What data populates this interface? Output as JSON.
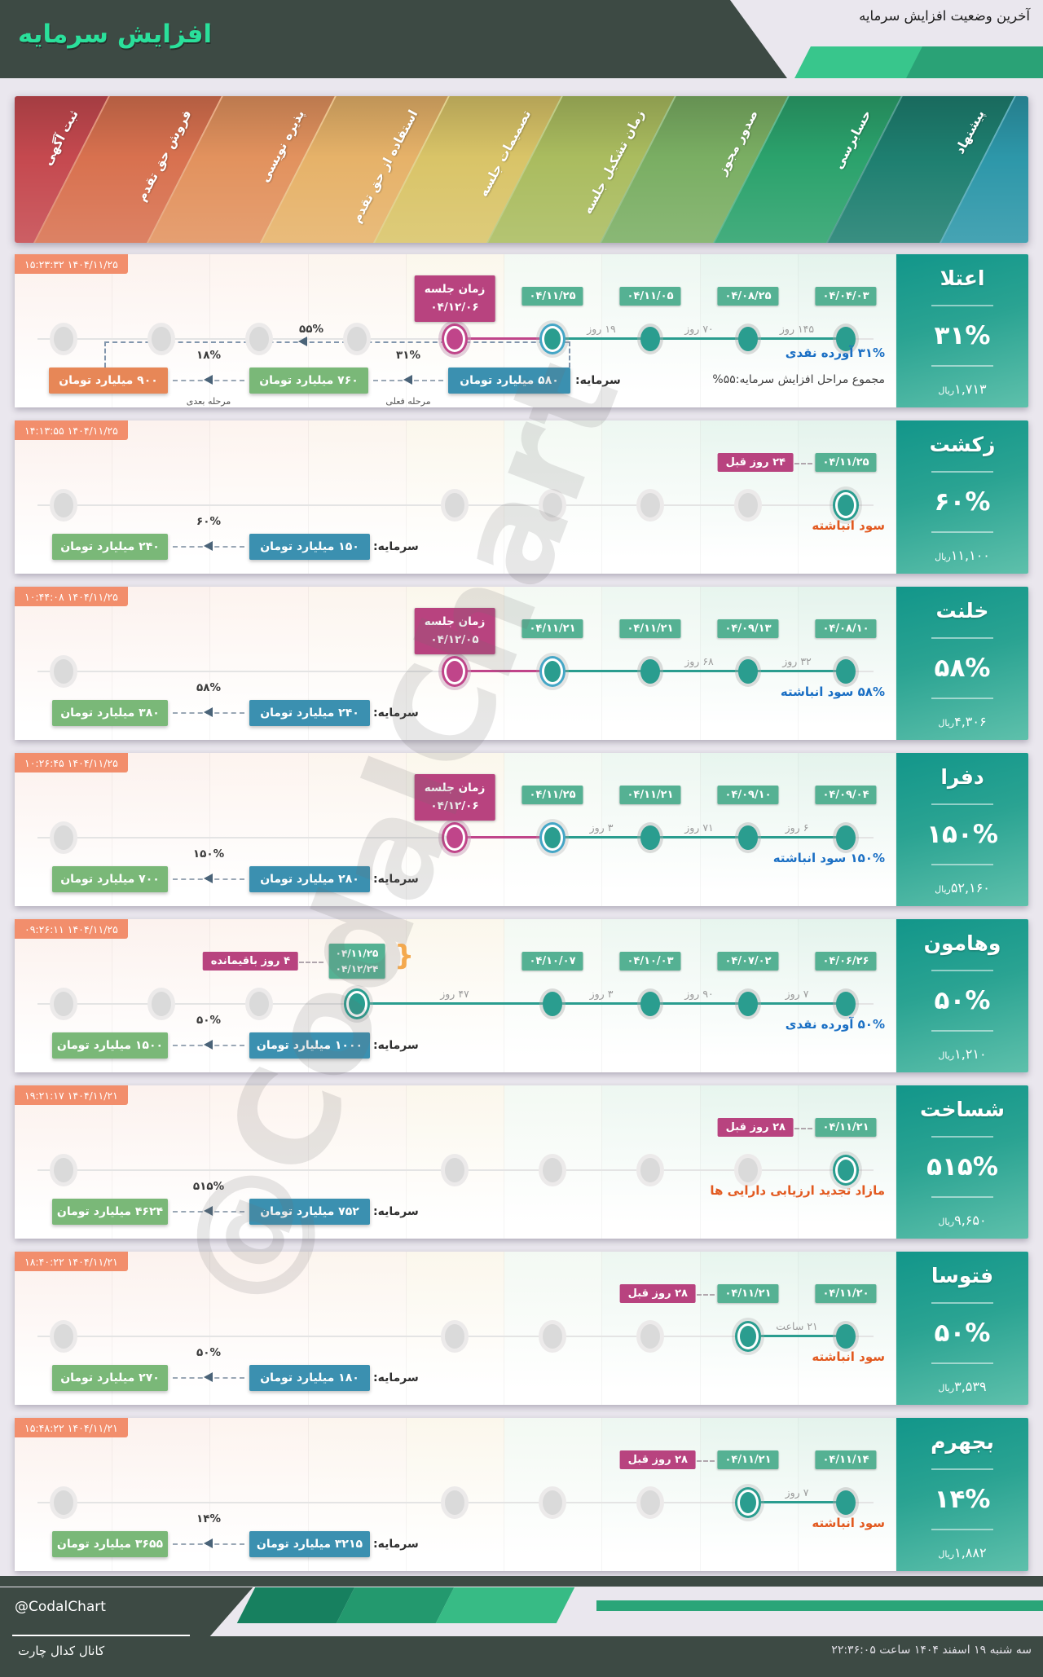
{
  "header": {
    "title": "افزایش سرمایه",
    "subtitle": "آخرین وضعیت افزایش سرمایه"
  },
  "stages": [
    {
      "label": "ثبت آگهی",
      "color": "#c5494f"
    },
    {
      "label": "فروش حق تقدم",
      "color": "#d8714f"
    },
    {
      "label": "پذیره نویسی",
      "color": "#e2925e"
    },
    {
      "label": "استفاده از حق تقدم",
      "color": "#e6b269"
    },
    {
      "label": "تصمیمات جلسه",
      "color": "#d9c468"
    },
    {
      "label": "زمان تشکیل جلسه",
      "color": "#aabc5f"
    },
    {
      "label": "صدور مجوز",
      "color": "#7aae63"
    },
    {
      "label": "حسابرسی",
      "color": "#2ba26c"
    },
    {
      "label": "پیشنهاد",
      "color": "#1e7f70"
    },
    {
      "label": "",
      "color": "#2d97a9"
    }
  ],
  "colors": {
    "teal": "#2a9d8f",
    "magenta": "#c0458a",
    "badge_teal": "#55b193",
    "badge_magenta": "#b8437f",
    "timestamp": "#f28e6c",
    "amount_blue": "#3b90b0",
    "amount_green": "#7ab878",
    "amount_orange": "#e78757",
    "cat_blue": "#1a6fc4",
    "cat_orange": "#e2591f"
  },
  "watermark": "@CodalChart",
  "cards": [
    {
      "name": "اعتلا",
      "pct": "۳۱%",
      "price": "۱,۷۱۳",
      "unit": "ریال",
      "timestamp": "۱۴۰۴/۱۱/۲۵ ۱۵:۲۳:۳۲",
      "meeting": {
        "col": 5,
        "title": "زمان جلسه",
        "date": "۰۴/۱۲/۰۶"
      },
      "dates": [
        {
          "col": 6,
          "text": "۰۴/۱۱/۲۵"
        },
        {
          "col": 7,
          "text": "۰۴/۱۱/۰۵"
        },
        {
          "col": 8,
          "text": "۰۴/۰۸/۲۵"
        },
        {
          "col": 9,
          "text": "۰۴/۰۴/۰۳"
        }
      ],
      "circles": [
        {
          "col": 1,
          "type": "gray"
        },
        {
          "col": 2,
          "type": "gray"
        },
        {
          "col": 3,
          "type": "gray"
        },
        {
          "col": 4,
          "type": "gray"
        },
        {
          "col": 5,
          "type": "magenta-ring"
        },
        {
          "col": 6,
          "type": "blue-ring"
        },
        {
          "col": 7,
          "type": "teal"
        },
        {
          "col": 8,
          "type": "teal"
        },
        {
          "col": 9,
          "type": "teal"
        }
      ],
      "segments": [
        {
          "from": 5,
          "to": 6,
          "color": "magenta"
        },
        {
          "from": 6,
          "to": 9,
          "color": "teal"
        }
      ],
      "gaps": [
        {
          "between": [
            6,
            7
          ],
          "text": "۱۹ روز"
        },
        {
          "between": [
            7,
            8
          ],
          "text": "۷۰ روز"
        },
        {
          "between": [
            8,
            9
          ],
          "text": "۱۴۵ روز"
        }
      ],
      "category": {
        "text": "۳۱% آورده نقدی",
        "color": "blue"
      },
      "note": "مجموع مراحل افزایش سرمایه:۵۵%",
      "amounts": {
        "label": "سرمایه:",
        "items": [
          {
            "text": "۵۸۰ میلیارد تومان",
            "color": "blue"
          },
          {
            "text": "۷۶۰ میلیارد تومان",
            "color": "green"
          },
          {
            "text": "۹۰۰ میلیارد تومان",
            "color": "orange"
          }
        ],
        "arrows": [
          {
            "pct": "۳۱%",
            "note": "مرحله فعلی"
          },
          {
            "pct": "۱۸%",
            "note": "مرحله بعدی"
          }
        ],
        "arc_pct": "۵۵%"
      }
    },
    {
      "name": "زکشت",
      "pct": "۶۰%",
      "price": "۱۱,۱۰۰",
      "unit": "ریال",
      "timestamp": "۱۴۰۴/۱۱/۲۵ ۱۴:۱۳:۵۵",
      "meeting": null,
      "ago": {
        "col": 9,
        "text": "۲۴ روز قبل"
      },
      "dates": [
        {
          "col": 9,
          "text": "۰۴/۱۱/۲۵"
        }
      ],
      "circles": [
        {
          "col": 1,
          "type": "gray"
        },
        {
          "col": 5,
          "type": "gray"
        },
        {
          "col": 6,
          "type": "gray"
        },
        {
          "col": 7,
          "type": "gray"
        },
        {
          "col": 8,
          "type": "gray"
        },
        {
          "col": 9,
          "type": "teal-ring"
        }
      ],
      "segments": [],
      "gaps": [],
      "category": {
        "text": "سود انباشته",
        "color": "orange"
      },
      "amounts": {
        "label": "سرمایه:",
        "items": [
          {
            "text": "۱۵۰ میلیارد تومان",
            "color": "blue"
          },
          {
            "text": "۲۴۰ میلیارد تومان",
            "color": "green"
          }
        ],
        "arrows": [
          {
            "pct": "۶۰%"
          }
        ]
      }
    },
    {
      "name": "خلنت",
      "pct": "۵۸%",
      "price": "۴,۳۰۶",
      "unit": "ریال",
      "timestamp": "۱۴۰۴/۱۱/۲۵ ۱۰:۴۴:۰۸",
      "meeting": {
        "col": 5,
        "title": "زمان جلسه",
        "date": "۰۴/۱۲/۰۵"
      },
      "dates": [
        {
          "col": 6,
          "text": "۰۴/۱۱/۲۱"
        },
        {
          "col": 7,
          "text": "۰۴/۱۱/۲۱"
        },
        {
          "col": 8,
          "text": "۰۴/۰۹/۱۳"
        },
        {
          "col": 9,
          "text": "۰۴/۰۸/۱۰"
        }
      ],
      "circles": [
        {
          "col": 1,
          "type": "gray"
        },
        {
          "col": 5,
          "type": "magenta-ring"
        },
        {
          "col": 6,
          "type": "blue-ring"
        },
        {
          "col": 7,
          "type": "teal"
        },
        {
          "col": 8,
          "type": "teal"
        },
        {
          "col": 9,
          "type": "teal"
        }
      ],
      "segments": [
        {
          "from": 5,
          "to": 6,
          "color": "magenta"
        },
        {
          "from": 6,
          "to": 9,
          "color": "teal"
        }
      ],
      "gaps": [
        {
          "between": [
            7,
            8
          ],
          "text": "۶۸ روز"
        },
        {
          "between": [
            8,
            9
          ],
          "text": "۳۲ روز"
        }
      ],
      "category": {
        "text": "۵۸% سود انباشته",
        "color": "blue"
      },
      "amounts": {
        "label": "سرمایه:",
        "items": [
          {
            "text": "۲۴۰ میلیارد تومان",
            "color": "blue"
          },
          {
            "text": "۳۸۰ میلیارد تومان",
            "color": "green"
          }
        ],
        "arrows": [
          {
            "pct": "۵۸%"
          }
        ]
      }
    },
    {
      "name": "دفرا",
      "pct": "۱۵۰%",
      "price": "۵۲,۱۶۰",
      "unit": "ریال",
      "timestamp": "۱۴۰۴/۱۱/۲۵ ۱۰:۲۶:۴۵",
      "meeting": {
        "col": 5,
        "title": "زمان جلسه",
        "date": "۰۴/۱۲/۰۶"
      },
      "dates": [
        {
          "col": 6,
          "text": "۰۴/۱۱/۲۵"
        },
        {
          "col": 7,
          "text": "۰۴/۱۱/۲۱"
        },
        {
          "col": 8,
          "text": "۰۴/۰۹/۱۰"
        },
        {
          "col": 9,
          "text": "۰۴/۰۹/۰۴"
        }
      ],
      "circles": [
        {
          "col": 1,
          "type": "gray"
        },
        {
          "col": 5,
          "type": "magenta-ring"
        },
        {
          "col": 6,
          "type": "blue-ring"
        },
        {
          "col": 7,
          "type": "teal"
        },
        {
          "col": 8,
          "type": "teal"
        },
        {
          "col": 9,
          "type": "teal"
        }
      ],
      "segments": [
        {
          "from": 5,
          "to": 6,
          "color": "magenta"
        },
        {
          "from": 6,
          "to": 9,
          "color": "teal"
        }
      ],
      "gaps": [
        {
          "between": [
            6,
            7
          ],
          "text": "۳ روز"
        },
        {
          "between": [
            7,
            8
          ],
          "text": "۷۱ روز"
        },
        {
          "between": [
            8,
            9
          ],
          "text": "۶ روز"
        }
      ],
      "category": {
        "text": "۱۵۰% سود انباشته",
        "color": "blue"
      },
      "amounts": {
        "label": "سرمایه:",
        "items": [
          {
            "text": "۲۸۰ میلیارد تومان",
            "color": "blue"
          },
          {
            "text": "۷۰۰ میلیارد تومان",
            "color": "green"
          }
        ],
        "arrows": [
          {
            "pct": "۱۵۰%"
          }
        ]
      }
    },
    {
      "name": "وهامون",
      "pct": "۵۰%",
      "price": "۱,۲۱۰",
      "unit": "ریال",
      "timestamp": "۱۴۰۴/۱۱/۲۵ ۰۹:۲۶:۱۱",
      "meeting": null,
      "ago": {
        "col": 4,
        "text": "۴ روز باقیمانده"
      },
      "dates": [
        {
          "col": 4,
          "lines": [
            "۰۴/۱۱/۲۵",
            "۰۴/۱۲/۲۴"
          ],
          "bracket": true
        },
        {
          "col": 6,
          "text": "۰۴/۱۰/۰۷"
        },
        {
          "col": 7,
          "text": "۰۴/۱۰/۰۳"
        },
        {
          "col": 8,
          "text": "۰۴/۰۷/۰۲"
        },
        {
          "col": 9,
          "text": "۰۴/۰۶/۲۶"
        }
      ],
      "circles": [
        {
          "col": 1,
          "type": "gray"
        },
        {
          "col": 2,
          "type": "gray"
        },
        {
          "col": 3,
          "type": "gray"
        },
        {
          "col": 4,
          "type": "teal-ring"
        },
        {
          "col": 6,
          "type": "teal"
        },
        {
          "col": 7,
          "type": "teal"
        },
        {
          "col": 8,
          "type": "teal"
        },
        {
          "col": 9,
          "type": "teal"
        }
      ],
      "segments": [
        {
          "from": 4,
          "to": 9,
          "color": "teal"
        }
      ],
      "gaps": [
        {
          "between": [
            4,
            6
          ],
          "text": "۴۷ روز"
        },
        {
          "between": [
            6,
            7
          ],
          "text": "۳ روز"
        },
        {
          "between": [
            7,
            8
          ],
          "text": "۹۰ روز"
        },
        {
          "between": [
            8,
            9
          ],
          "text": "۷ روز"
        }
      ],
      "category": {
        "text": "۵۰% آورده نقدی",
        "color": "blue"
      },
      "amounts": {
        "label": "سرمایه:",
        "items": [
          {
            "text": "۱۰۰۰ میلیارد تومان",
            "color": "blue"
          },
          {
            "text": "۱۵۰۰ میلیارد تومان",
            "color": "green"
          }
        ],
        "arrows": [
          {
            "pct": "۵۰%"
          }
        ]
      }
    },
    {
      "name": "شساخت",
      "pct": "۵۱۵%",
      "price": "۹,۶۵۰",
      "unit": "ریال",
      "timestamp": "۱۴۰۴/۱۱/۲۱ ۱۹:۲۱:۱۷",
      "meeting": null,
      "ago": {
        "col": 9,
        "text": "۲۸ روز قبل"
      },
      "dates": [
        {
          "col": 9,
          "text": "۰۴/۱۱/۲۱"
        }
      ],
      "circles": [
        {
          "col": 1,
          "type": "gray"
        },
        {
          "col": 5,
          "type": "gray"
        },
        {
          "col": 6,
          "type": "gray"
        },
        {
          "col": 7,
          "type": "gray"
        },
        {
          "col": 8,
          "type": "gray"
        },
        {
          "col": 9,
          "type": "teal-ring"
        }
      ],
      "segments": [],
      "gaps": [],
      "category": {
        "text": "مازاد تجدید ارزیابی دارایی ها",
        "color": "orange"
      },
      "amounts": {
        "label": "سرمایه:",
        "items": [
          {
            "text": "۷۵۲ میلیارد تومان",
            "color": "blue"
          },
          {
            "text": "۴۶۲۴ میلیارد تومان",
            "color": "green"
          }
        ],
        "arrows": [
          {
            "pct": "۵۱۵%"
          }
        ]
      }
    },
    {
      "name": "فتوسا",
      "pct": "۵۰%",
      "price": "۳,۵۳۹",
      "unit": "ریال",
      "timestamp": "۱۴۰۴/۱۱/۲۱ ۱۸:۴۰:۲۲",
      "meeting": null,
      "ago": {
        "col": 8,
        "text": "۲۸ روز قبل"
      },
      "dates": [
        {
          "col": 8,
          "text": "۰۴/۱۱/۲۱"
        },
        {
          "col": 9,
          "text": "۰۴/۱۱/۲۰"
        }
      ],
      "circles": [
        {
          "col": 1,
          "type": "gray"
        },
        {
          "col": 5,
          "type": "gray"
        },
        {
          "col": 6,
          "type": "gray"
        },
        {
          "col": 7,
          "type": "gray"
        },
        {
          "col": 8,
          "type": "teal-ring"
        },
        {
          "col": 9,
          "type": "teal"
        }
      ],
      "segments": [
        {
          "from": 8,
          "to": 9,
          "color": "teal"
        }
      ],
      "gaps": [
        {
          "between": [
            8,
            9
          ],
          "text": "۲۱ ساعت"
        }
      ],
      "category": {
        "text": "سود انباشته",
        "color": "orange"
      },
      "amounts": {
        "label": "سرمایه:",
        "items": [
          {
            "text": "۱۸۰ میلیارد تومان",
            "color": "blue"
          },
          {
            "text": "۲۷۰ میلیارد تومان",
            "color": "green"
          }
        ],
        "arrows": [
          {
            "pct": "۵۰%"
          }
        ]
      }
    },
    {
      "name": "بجهرم",
      "pct": "۱۴%",
      "price": "۱,۸۸۲",
      "unit": "ریال",
      "timestamp": "۱۴۰۴/۱۱/۲۱ ۱۵:۴۸:۲۲",
      "meeting": null,
      "ago": {
        "col": 8,
        "text": "۲۸ روز قبل"
      },
      "dates": [
        {
          "col": 8,
          "text": "۰۴/۱۱/۲۱"
        },
        {
          "col": 9,
          "text": "۰۴/۱۱/۱۴"
        }
      ],
      "circles": [
        {
          "col": 1,
          "type": "gray"
        },
        {
          "col": 5,
          "type": "gray"
        },
        {
          "col": 6,
          "type": "gray"
        },
        {
          "col": 7,
          "type": "gray"
        },
        {
          "col": 8,
          "type": "teal-ring"
        },
        {
          "col": 9,
          "type": "teal"
        }
      ],
      "segments": [
        {
          "from": 8,
          "to": 9,
          "color": "teal"
        }
      ],
      "gaps": [
        {
          "between": [
            8,
            9
          ],
          "text": "۷ روز"
        }
      ],
      "category": {
        "text": "سود انباشته",
        "color": "orange"
      },
      "amounts": {
        "label": "سرمایه:",
        "items": [
          {
            "text": "۳۲۱۵ میلیارد تومان",
            "color": "blue"
          },
          {
            "text": "۳۶۵۵ میلیارد تومان",
            "color": "green"
          }
        ],
        "arrows": [
          {
            "pct": "۱۴%"
          }
        ]
      }
    }
  ],
  "chart_data": {
    "type": "table",
    "title": "آخرین وضعیت افزایش سرمایه",
    "columns": [
      "نماد",
      "درصد افزایش",
      "قیمت (ریال)",
      "محل تامین",
      "سرمایه فعلی (میلیارد تومان)",
      "سرمایه جدید (میلیارد تومان)"
    ],
    "rows": [
      [
        "اعتلا",
        "۳۱%",
        "۱,۷۱۳",
        "آورده نقدی",
        "۵۸۰",
        "۷۶۰ / ۹۰۰"
      ],
      [
        "زکشت",
        "۶۰%",
        "۱۱,۱۰۰",
        "سود انباشته",
        "۱۵۰",
        "۲۴۰"
      ],
      [
        "خلنت",
        "۵۸%",
        "۴,۳۰۶",
        "سود انباشته",
        "۲۴۰",
        "۳۸۰"
      ],
      [
        "دفرا",
        "۱۵۰%",
        "۵۲,۱۶۰",
        "سود انباشته",
        "۲۸۰",
        "۷۰۰"
      ],
      [
        "وهامون",
        "۵۰%",
        "۱,۲۱۰",
        "آورده نقدی",
        "۱۰۰۰",
        "۱۵۰۰"
      ],
      [
        "شساخت",
        "۵۱۵%",
        "۹,۶۵۰",
        "مازاد تجدید ارزیابی دارایی ها",
        "۷۵۲",
        "۴۶۲۴"
      ],
      [
        "فتوسا",
        "۵۰%",
        "۳,۵۳۹",
        "سود انباشته",
        "۱۸۰",
        "۲۷۰"
      ],
      [
        "بجهرم",
        "۱۴%",
        "۱,۸۸۲",
        "سود انباشته",
        "۳۲۱۵",
        "۳۶۵۵"
      ]
    ]
  },
  "footer": {
    "handle": "@CodalChart",
    "channel": "کانال کدال چارت",
    "datetime": "سه شنبه ۱۹ اسفند ۱۴۰۴ ساعت ۲۲:۳۶:۰۵"
  }
}
